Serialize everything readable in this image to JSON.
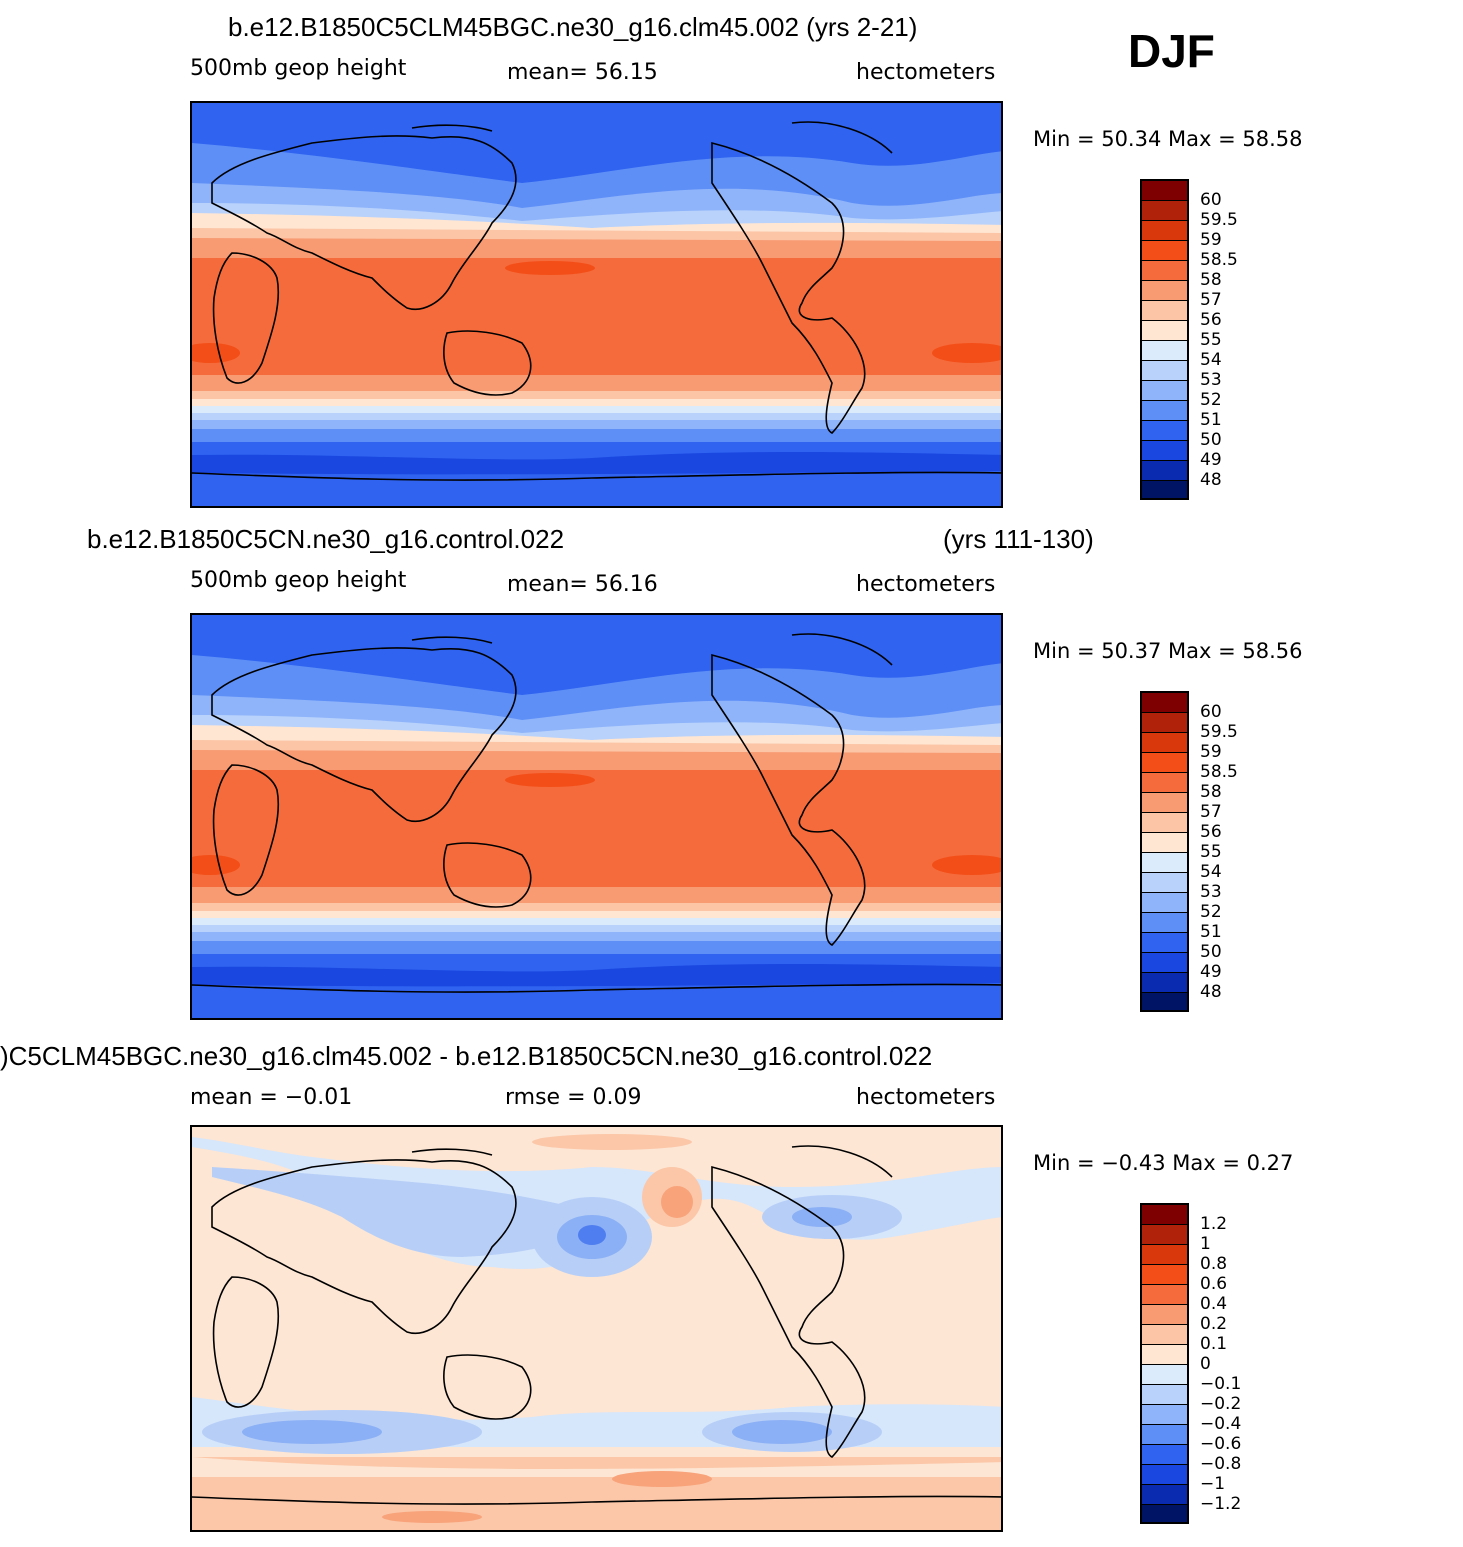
{
  "season": "DJF",
  "panels": [
    {
      "title": "b.e12.B1850C5CLM45BGC.ne30_g16.clm45.002 (yrs 2-21)",
      "title_right": "",
      "left_label": "500mb  geop  height",
      "mid_label": "mean=   56.15",
      "units": "hectometers",
      "minmax": "Min  =    50.34  Max  =    58.58",
      "levels": [
        "60",
        "59.5",
        "59",
        "58.5",
        "58",
        "57",
        "56",
        "55",
        "54",
        "53",
        "52",
        "51",
        "50",
        "49",
        "48"
      ]
    },
    {
      "title": "b.e12.B1850C5CN.ne30_g16.control.022",
      "title_right": "(yrs 111-130)",
      "left_label": "500mb  geop  height",
      "mid_label": "mean=   56.16",
      "units": "hectometers",
      "minmax": "Min  =    50.37  Max  =    58.56",
      "levels": [
        "60",
        "59.5",
        "59",
        "58.5",
        "58",
        "57",
        "56",
        "55",
        "54",
        "53",
        "52",
        "51",
        "50",
        "49",
        "48"
      ]
    },
    {
      "title": ")C5CLM45BGC.ne30_g16.clm45.002 - b.e12.B1850C5CN.ne30_g16.control.022",
      "title_right": "",
      "left_label": "mean  =    −0.01",
      "mid_label": "rmse  =      0.09",
      "units": "hectometers",
      "minmax": "Min  =    −0.43  Max  =      0.27",
      "levels": [
        "1.2",
        "1",
        "0.8",
        "0.6",
        "0.4",
        "0.2",
        "0.1",
        "0",
        "−0.1",
        "−0.2",
        "−0.4",
        "−0.6",
        "−0.8",
        "−1",
        "−1.2"
      ]
    }
  ],
  "colors": {
    "palette": [
      "#7f0000",
      "#b0220a",
      "#d9380c",
      "#f34e17",
      "#f56b3c",
      "#f89a72",
      "#fcc5a6",
      "#fee6d3",
      "#dcebfc",
      "#b8d2fb",
      "#8fb4fa",
      "#5e8ff7",
      "#2f63f0",
      "#1a47e0",
      "#0a2bb0",
      "#001466"
    ],
    "diff_light_blue": "#d6e6fb",
    "diff_mid_blue": "#b7cff7",
    "diff_blue": "#8cb0f5",
    "diff_dark_blue": "#4f7ef0",
    "diff_peach": "#fde6d4",
    "diff_salmon": "#fbc7a8",
    "diff_orange": "#f8a37a"
  }
}
